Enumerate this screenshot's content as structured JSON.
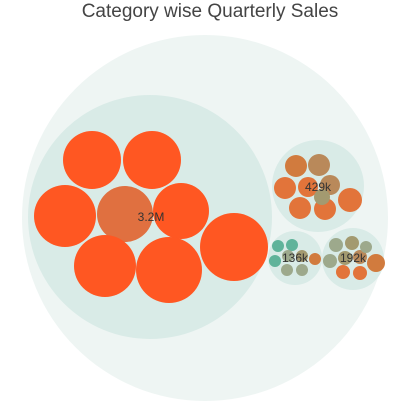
{
  "chart_data": {
    "type": "bubble-pack",
    "title": "Category wise Quarterly Sales",
    "colors": {
      "outer": "#eef5f3",
      "group": "#d9ebe7",
      "leaf_large": "#ff5722",
      "leaf_center": "#e07040",
      "leaf_brown": "#d17b3e",
      "leaf_orange": "#e2743a",
      "leaf_tan": "#b9895a",
      "leaf_olive": "#a39a70",
      "leaf_teal": "#5fb39a",
      "leaf_sage": "#9da98c"
    },
    "groups": [
      {
        "label": "3.2M",
        "value": 3200000,
        "leaf_count": 9
      },
      {
        "label": "429k",
        "value": 429000,
        "leaf_count": 9
      },
      {
        "label": "136k",
        "value": 136000,
        "leaf_count": 8
      },
      {
        "label": "192k",
        "value": 192000,
        "leaf_count": 9
      }
    ]
  }
}
